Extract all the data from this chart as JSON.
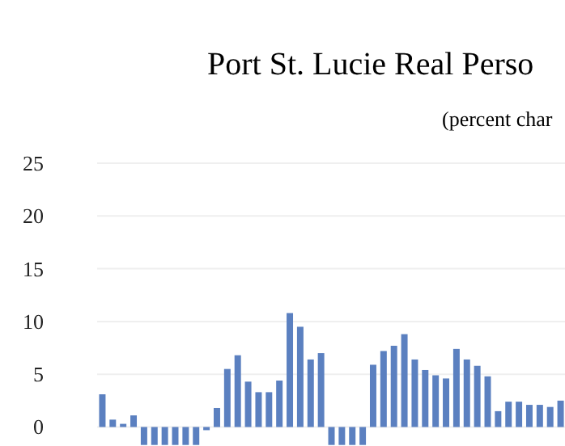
{
  "chart_data": {
    "type": "bar",
    "title": "Port St. Lucie Real Perso",
    "subtitle": "(percent char",
    "categories": [
      null,
      null,
      null,
      null,
      null,
      null,
      null,
      null,
      null,
      null,
      null,
      null,
      null,
      null,
      null,
      null,
      null,
      null,
      null,
      null,
      null,
      null,
      null,
      null,
      null,
      null,
      null,
      null,
      null,
      null,
      null,
      null,
      null,
      null,
      null,
      null,
      null,
      null,
      null,
      null,
      null,
      null,
      null,
      null,
      null
    ],
    "values": [
      3.1,
      0.7,
      0.3,
      1.1,
      -1.7,
      -1.7,
      -1.7,
      -1.7,
      -1.7,
      -1.7,
      -0.3,
      1.8,
      5.5,
      6.8,
      4.3,
      3.3,
      3.3,
      4.4,
      10.8,
      9.5,
      6.4,
      7.0,
      -1.7,
      -1.7,
      -1.7,
      -1.7,
      5.9,
      7.2,
      7.7,
      8.8,
      6.4,
      5.4,
      4.9,
      4.6,
      7.4,
      6.4,
      5.8,
      4.8,
      1.5,
      2.4,
      2.4,
      2.1,
      2.1,
      1.9,
      2.5
    ],
    "color": "#5b80c0",
    "ylim": [
      -1.8,
      25
    ],
    "yticks": [
      0,
      5,
      10,
      15,
      20,
      25
    ],
    "grid": "y",
    "tick_labels": "y"
  }
}
